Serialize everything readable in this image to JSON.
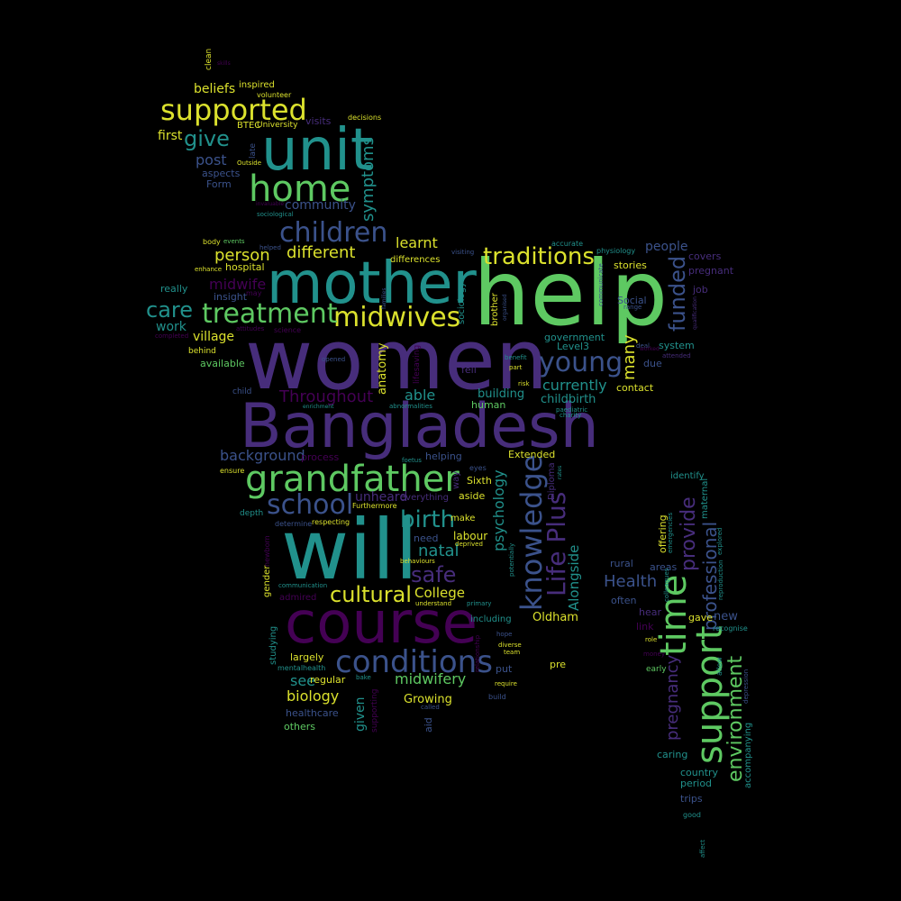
{
  "palette": {
    "background": "#000000",
    "y": "#dbe12d",
    "g": "#5ec962",
    "t": "#21918c",
    "b": "#3b528b",
    "p": "#472d7b",
    "d": "#440154"
  },
  "words": [
    {
      "t": "women",
      "c": "p",
      "s": 92
    },
    {
      "t": "help",
      "c": "g",
      "s": 100
    },
    {
      "t": "Bangladesh",
      "c": "p",
      "s": 68
    },
    {
      "t": "will",
      "c": "t",
      "s": 92
    },
    {
      "t": "course",
      "c": "d",
      "s": 64
    },
    {
      "t": "mother",
      "c": "t",
      "s": 64
    },
    {
      "t": "unit",
      "c": "t",
      "s": 64
    },
    {
      "t": "grandfather",
      "c": "g",
      "s": 40
    },
    {
      "t": "home",
      "c": "g",
      "s": 40
    },
    {
      "t": "support",
      "c": "g",
      "s": 40
    },
    {
      "t": "time",
      "c": "g",
      "s": 40
    },
    {
      "t": "conditions",
      "c": "b",
      "s": 34
    },
    {
      "t": "knowledge",
      "c": "b",
      "s": 32
    },
    {
      "t": "supported",
      "c": "y",
      "s": 32
    },
    {
      "t": "midwives",
      "c": "y",
      "s": 30
    },
    {
      "t": "treatment",
      "c": "g",
      "s": 30
    },
    {
      "t": "children",
      "c": "b",
      "s": 30
    },
    {
      "t": "school",
      "c": "b",
      "s": 30
    },
    {
      "t": "young",
      "c": "b",
      "s": 30
    },
    {
      "t": "Life Plus",
      "c": "p",
      "s": 28
    },
    {
      "t": "traditions",
      "c": "y",
      "s": 26
    },
    {
      "t": "birth",
      "c": "t",
      "s": 26
    },
    {
      "t": "cultural",
      "c": "y",
      "s": 24
    },
    {
      "t": "safe",
      "c": "p",
      "s": 24
    },
    {
      "t": "care",
      "c": "t",
      "s": 24
    },
    {
      "t": "give",
      "c": "t",
      "s": 24
    },
    {
      "t": "funded",
      "c": "b",
      "s": 24
    },
    {
      "t": "environment",
      "c": "g",
      "s": 22
    },
    {
      "t": "provide",
      "c": "p",
      "s": 22
    },
    {
      "t": "professional",
      "c": "b",
      "s": 20
    },
    {
      "t": "pregnancy",
      "c": "p",
      "s": 18
    },
    {
      "t": "person",
      "c": "y",
      "s": 18
    },
    {
      "t": "different",
      "c": "y",
      "s": 18
    },
    {
      "t": "symptoms",
      "c": "t",
      "s": 18
    },
    {
      "t": "natal",
      "c": "t",
      "s": 18
    },
    {
      "t": "Health",
      "c": "b",
      "s": 18
    },
    {
      "t": "Throughout",
      "c": "d",
      "s": 18
    },
    {
      "t": "many",
      "c": "y",
      "s": 18
    },
    {
      "t": "psychology",
      "c": "t",
      "s": 16
    },
    {
      "t": "currently",
      "c": "t",
      "s": 16
    },
    {
      "t": "post",
      "c": "b",
      "s": 16
    },
    {
      "t": "learnt",
      "c": "y",
      "s": 16
    },
    {
      "t": "biology",
      "c": "y",
      "s": 16
    },
    {
      "t": "background",
      "c": "b",
      "s": 16
    },
    {
      "t": "midwifery",
      "c": "g",
      "s": 16
    },
    {
      "t": "midwife",
      "c": "d",
      "s": 16
    },
    {
      "t": "able",
      "c": "t",
      "s": 16
    },
    {
      "t": "see",
      "c": "t",
      "s": 16
    },
    {
      "t": "College",
      "c": "y",
      "s": 15
    },
    {
      "t": "Alongside",
      "c": "t",
      "s": 15
    },
    {
      "t": "people",
      "c": "b",
      "s": 14
    },
    {
      "t": "community",
      "c": "b",
      "s": 14
    },
    {
      "t": "village",
      "c": "y",
      "s": 14
    },
    {
      "t": "work",
      "c": "t",
      "s": 14
    },
    {
      "t": "given",
      "c": "t",
      "s": 14
    },
    {
      "t": "beliefs",
      "c": "y",
      "s": 14
    },
    {
      "t": "unheard",
      "c": "p",
      "s": 14
    },
    {
      "t": "first",
      "c": "y",
      "s": 14
    },
    {
      "t": "Oldham",
      "c": "y",
      "s": 13
    },
    {
      "t": "Growing",
      "c": "y",
      "s": 13
    },
    {
      "t": "building",
      "c": "t",
      "s": 13
    },
    {
      "t": "childbirth",
      "c": "t",
      "s": 13
    },
    {
      "t": "new",
      "c": "b",
      "s": 13
    },
    {
      "t": "anatomy",
      "c": "y",
      "s": 13
    },
    {
      "t": "labour",
      "c": "y",
      "s": 12
    },
    {
      "t": "stories",
      "c": "y",
      "s": 11
    },
    {
      "t": "hospital",
      "c": "y",
      "s": 11
    },
    {
      "t": "insight",
      "c": "b",
      "s": 11
    },
    {
      "t": "really",
      "c": "t",
      "s": 11
    },
    {
      "t": "available",
      "c": "g",
      "s": 11
    },
    {
      "t": "contact",
      "c": "y",
      "s": 11
    },
    {
      "t": "human",
      "c": "g",
      "s": 11
    },
    {
      "t": "fell",
      "c": "p",
      "s": 11
    },
    {
      "t": "due",
      "c": "b",
      "s": 11
    },
    {
      "t": "aside",
      "c": "y",
      "s": 11
    },
    {
      "t": "need",
      "c": "b",
      "s": 11
    },
    {
      "t": "Sixth",
      "c": "y",
      "s": 11
    },
    {
      "t": "Extended",
      "c": "y",
      "s": 11
    },
    {
      "t": "largely",
      "c": "y",
      "s": 11
    },
    {
      "t": "regular",
      "c": "y",
      "s": 11
    },
    {
      "t": "put",
      "c": "b",
      "s": 11
    },
    {
      "t": "others",
      "c": "g",
      "s": 11
    },
    {
      "t": "caring",
      "c": "t",
      "s": 11
    },
    {
      "t": "country",
      "c": "t",
      "s": 11
    },
    {
      "t": "period",
      "c": "t",
      "s": 11
    },
    {
      "t": "trips",
      "c": "b",
      "s": 11
    },
    {
      "t": "healthcare",
      "c": "b",
      "s": 11
    },
    {
      "t": "process",
      "c": "d",
      "s": 11
    },
    {
      "t": "helping",
      "c": "b",
      "s": 11
    },
    {
      "t": "areas",
      "c": "b",
      "s": 11
    },
    {
      "t": "often",
      "c": "b",
      "s": 11
    },
    {
      "t": "link",
      "c": "d",
      "s": 11
    },
    {
      "t": "gave",
      "c": "y",
      "s": 11
    },
    {
      "t": "hear",
      "c": "p",
      "s": 11
    },
    {
      "t": "pre",
      "c": "y",
      "s": 11
    },
    {
      "t": "aid",
      "c": "b",
      "s": 11
    },
    {
      "t": "offering",
      "c": "y",
      "s": 11
    },
    {
      "t": "rural",
      "c": "b",
      "s": 11
    },
    {
      "t": "Form",
      "c": "b",
      "s": 11
    },
    {
      "t": "aspects",
      "c": "b",
      "s": 11
    },
    {
      "t": "government",
      "c": "t",
      "s": 11
    },
    {
      "t": "Level3",
      "c": "t",
      "s": 11
    },
    {
      "t": "system",
      "c": "t",
      "s": 11
    },
    {
      "t": "covers",
      "c": "p",
      "s": 11
    },
    {
      "t": "pregnant",
      "c": "p",
      "s": 11
    },
    {
      "t": "job",
      "c": "p",
      "s": 11
    },
    {
      "t": "Social",
      "c": "b",
      "s": 11
    },
    {
      "t": "visits",
      "c": "p",
      "s": 11
    },
    {
      "t": "inspired",
      "c": "y",
      "s": 10
    },
    {
      "t": "maternal",
      "c": "t",
      "s": 10
    },
    {
      "t": "identify",
      "c": "t",
      "s": 10
    },
    {
      "t": "Diploma",
      "c": "p",
      "s": 10
    },
    {
      "t": "way",
      "c": "p",
      "s": 10
    },
    {
      "t": "brother",
      "c": "y",
      "s": 10
    },
    {
      "t": "sociology",
      "c": "t",
      "s": 10
    },
    {
      "t": "including",
      "c": "t",
      "s": 10
    },
    {
      "t": "make",
      "c": "y",
      "s": 10
    },
    {
      "t": "everything",
      "c": "p",
      "s": 10
    },
    {
      "t": "studying",
      "c": "t",
      "s": 10
    },
    {
      "t": "gender",
      "c": "y",
      "s": 10
    },
    {
      "t": "accompanying",
      "c": "t",
      "s": 10
    },
    {
      "t": "lifesaving",
      "c": "d",
      "s": 9
    },
    {
      "t": "behind",
      "c": "y",
      "s": 9
    },
    {
      "t": "child",
      "c": "b",
      "s": 9
    },
    {
      "t": "late",
      "c": "b",
      "s": 9
    },
    {
      "t": "University",
      "c": "y",
      "s": 9
    },
    {
      "t": "BTEC",
      "c": "y",
      "s": 10
    },
    {
      "t": "decisions",
      "c": "y",
      "s": 8
    },
    {
      "t": "physiology",
      "c": "t",
      "s": 8
    },
    {
      "t": "accurate",
      "c": "t",
      "s": 8
    },
    {
      "t": "clean",
      "c": "y",
      "s": 9
    },
    {
      "t": "volunteer",
      "c": "y",
      "s": 8
    },
    {
      "t": "depth",
      "c": "t",
      "s": 9
    },
    {
      "t": "mental",
      "c": "t",
      "s": 8
    },
    {
      "t": "health",
      "c": "t",
      "s": 8
    },
    {
      "t": "ensure",
      "c": "y",
      "s": 8
    },
    {
      "t": "eyes",
      "c": "b",
      "s": 8
    },
    {
      "t": "early",
      "c": "g",
      "s": 9
    },
    {
      "t": "allow",
      "c": "t",
      "s": 8
    },
    {
      "t": "recognise",
      "c": "t",
      "s": 8
    },
    {
      "t": "role",
      "c": "y",
      "s": 7
    },
    {
      "t": "money",
      "c": "d",
      "s": 7
    },
    {
      "t": "colleagues",
      "c": "t",
      "s": 7
    },
    {
      "t": "reproduction",
      "c": "t",
      "s": 7
    },
    {
      "t": "qualification",
      "c": "p",
      "s": 6
    },
    {
      "t": "attended",
      "c": "p",
      "s": 7
    },
    {
      "t": "deal",
      "c": "b",
      "s": 7
    },
    {
      "t": "range",
      "c": "b",
      "s": 7
    },
    {
      "t": "communicate",
      "c": "b",
      "s": 7
    },
    {
      "t": "paediatric",
      "c": "t",
      "s": 7
    },
    {
      "t": "charity",
      "c": "t",
      "s": 7
    },
    {
      "t": "risk",
      "c": "y",
      "s": 7
    },
    {
      "t": "part",
      "c": "y",
      "s": 7
    },
    {
      "t": "benefit",
      "c": "t",
      "s": 7
    },
    {
      "t": "opened",
      "c": "b",
      "s": 7
    },
    {
      "t": "abnormalities",
      "c": "t",
      "s": 7
    },
    {
      "t": "enrichment",
      "c": "t",
      "s": 6
    },
    {
      "t": "foetus",
      "c": "t",
      "s": 7
    },
    {
      "t": "rates",
      "c": "t",
      "s": 6
    },
    {
      "t": "understand",
      "c": "y",
      "s": 7
    },
    {
      "t": "deprived",
      "c": "y",
      "s": 7
    },
    {
      "t": "behaviours",
      "c": "y",
      "s": 7
    },
    {
      "t": "potentially",
      "c": "t",
      "s": 7
    },
    {
      "t": "primary",
      "c": "t",
      "s": 7
    },
    {
      "t": "diverse",
      "c": "y",
      "s": 7
    },
    {
      "t": "team",
      "c": "y",
      "s": 7
    },
    {
      "t": "hope",
      "c": "b",
      "s": 7
    },
    {
      "t": "require",
      "c": "y",
      "s": 7
    },
    {
      "t": "build",
      "c": "b",
      "s": 8
    },
    {
      "t": "relationship",
      "c": "d",
      "s": 7
    },
    {
      "t": "called",
      "c": "b",
      "s": 7
    },
    {
      "t": "bake",
      "c": "t",
      "s": 7
    },
    {
      "t": "supporting",
      "c": "d",
      "s": 9
    },
    {
      "t": "communication",
      "c": "t",
      "s": 7
    },
    {
      "t": "admired",
      "c": "d",
      "s": 10
    },
    {
      "t": "respecting",
      "c": "y",
      "s": 8
    },
    {
      "t": "determine",
      "c": "b",
      "s": 8
    },
    {
      "t": "Furthermore",
      "c": "y",
      "s": 8
    },
    {
      "t": "newborn",
      "c": "d",
      "s": 8
    },
    {
      "t": "emergencies",
      "c": "t",
      "s": 7
    },
    {
      "t": "explored",
      "c": "t",
      "s": 7
    },
    {
      "t": "depression",
      "c": "b",
      "s": 7
    },
    {
      "t": "affect",
      "c": "t",
      "s": 7
    },
    {
      "t": "good",
      "c": "t",
      "s": 8
    },
    {
      "t": "body",
      "c": "y",
      "s": 8
    },
    {
      "t": "events",
      "c": "g",
      "s": 7
    },
    {
      "t": "helped",
      "c": "b",
      "s": 7
    },
    {
      "t": "visiting",
      "c": "b",
      "s": 7
    },
    {
      "t": "organised",
      "c": "b",
      "s": 6
    },
    {
      "t": "families",
      "c": "b",
      "s": 6
    },
    {
      "t": "enhance",
      "c": "y",
      "s": 7
    },
    {
      "t": "may",
      "c": "d",
      "s": 8
    },
    {
      "t": "attitudes",
      "c": "d",
      "s": 7
    },
    {
      "t": "science",
      "c": "d",
      "s": 8
    },
    {
      "t": "completed",
      "c": "d",
      "s": 7
    },
    {
      "t": "differences",
      "c": "y",
      "s": 10
    },
    {
      "t": "Outside",
      "c": "y",
      "s": 7
    },
    {
      "t": "invaluable",
      "c": "d",
      "s": 6
    },
    {
      "t": "sociological",
      "c": "t",
      "s": 7
    },
    {
      "t": "skills",
      "c": "d",
      "s": 6
    },
    {
      "t": "worked",
      "c": "d",
      "s": 6
    }
  ]
}
